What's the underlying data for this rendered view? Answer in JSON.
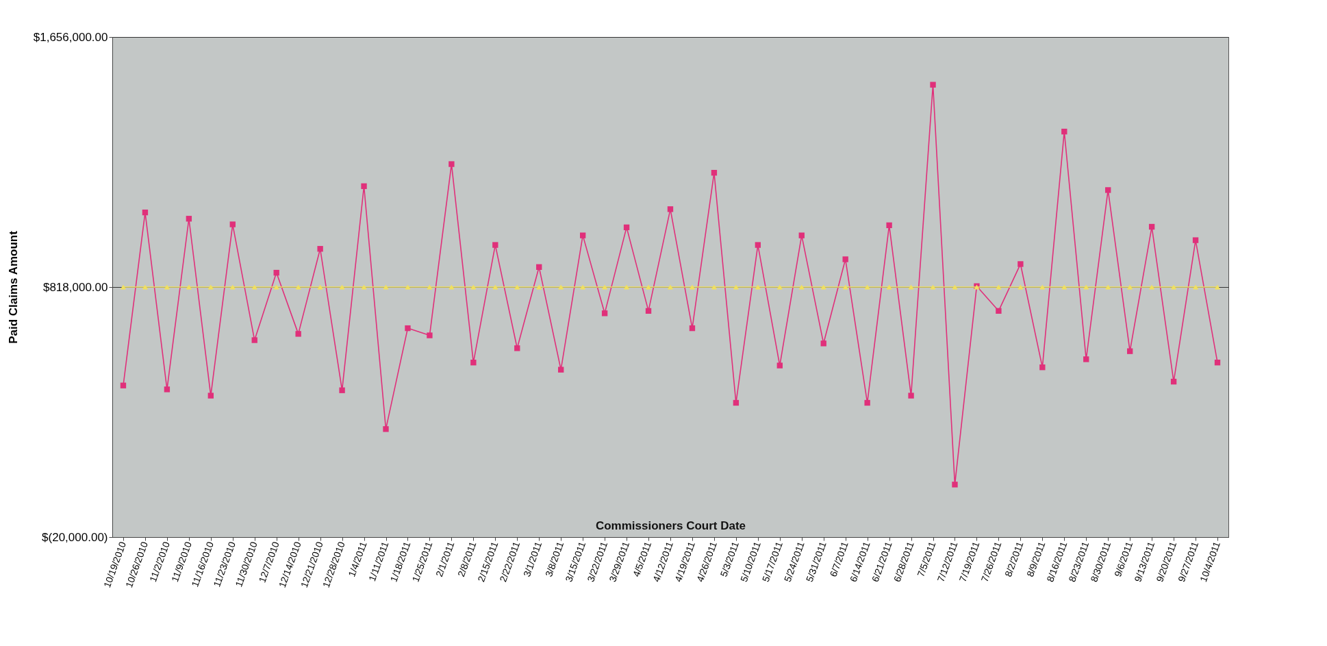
{
  "chart_data": {
    "type": "line",
    "xlabel": "Commissioners Court Date",
    "ylabel": "Paid Claims Amount",
    "categories": [
      "10/19/2010",
      "10/26/2010",
      "11/2/2010",
      "11/9/2010",
      "11/16/2010",
      "11/23/2010",
      "11/30/2010",
      "12/7/2010",
      "12/14/2010",
      "12/21/2010",
      "12/28/2010",
      "1/4/2011",
      "1/11/2011",
      "1/18/2011",
      "1/25/2011",
      "2/1/2011",
      "2/8/2011",
      "2/15/2011",
      "2/22/2011",
      "3/1/2011",
      "3/8/2011",
      "3/15/2011",
      "3/22/2011",
      "3/29/2011",
      "4/5/2011",
      "4/12/2011",
      "4/19/2011",
      "4/26/2011",
      "5/3/2011",
      "5/10/2011",
      "5/17/2011",
      "5/24/2011",
      "5/31/2011",
      "6/7/2011",
      "6/14/2011",
      "6/21/2011",
      "6/28/2011",
      "7/5/2011",
      "7/12/2011",
      "7/19/2011",
      "7/26/2011",
      "8/2/2011",
      "8/9/2011",
      "8/16/2011",
      "8/23/2011",
      "8/30/2011",
      "9/6/2011",
      "9/13/2011",
      "9/20/2011",
      "9/27/2011",
      "10/4/2011"
    ],
    "series": [
      {
        "color": "#e0307a",
        "marker": "square",
        "values": [
          488000,
          1068000,
          475000,
          1047000,
          454000,
          1028000,
          640000,
          866000,
          661000,
          946000,
          472000,
          1156000,
          342000,
          680000,
          656000,
          1230000,
          565000,
          959000,
          613000,
          885000,
          541000,
          991000,
          730000,
          1018000,
          738000,
          1079000,
          680000,
          1201000,
          430000,
          959000,
          555000,
          991000,
          629000,
          911000,
          430000,
          1025000,
          454000,
          1496000,
          156000,
          821000,
          738000,
          895000,
          549000,
          1339000,
          576000,
          1143000,
          603000,
          1020000,
          501000,
          975000,
          565000
        ]
      },
      {
        "color": "#f0e060",
        "marker": "triangle",
        "values": [
          818000,
          818000,
          818000,
          818000,
          818000,
          818000,
          818000,
          818000,
          818000,
          818000,
          818000,
          818000,
          818000,
          818000,
          818000,
          818000,
          818000,
          818000,
          818000,
          818000,
          818000,
          818000,
          818000,
          818000,
          818000,
          818000,
          818000,
          818000,
          818000,
          818000,
          818000,
          818000,
          818000,
          818000,
          818000,
          818000,
          818000,
          818000,
          818000,
          818000,
          818000,
          818000,
          818000,
          818000,
          818000,
          818000,
          818000,
          818000,
          818000,
          818000,
          818000
        ]
      }
    ],
    "ylim": [
      -20000,
      1656000
    ],
    "yticks": [
      {
        "value": -20000,
        "label": "$(20,000.00)"
      },
      {
        "value": 818000,
        "label": "$818,000.00"
      },
      {
        "value": 1656000,
        "label": "$1,656,000.00"
      }
    ],
    "grid": "y"
  }
}
